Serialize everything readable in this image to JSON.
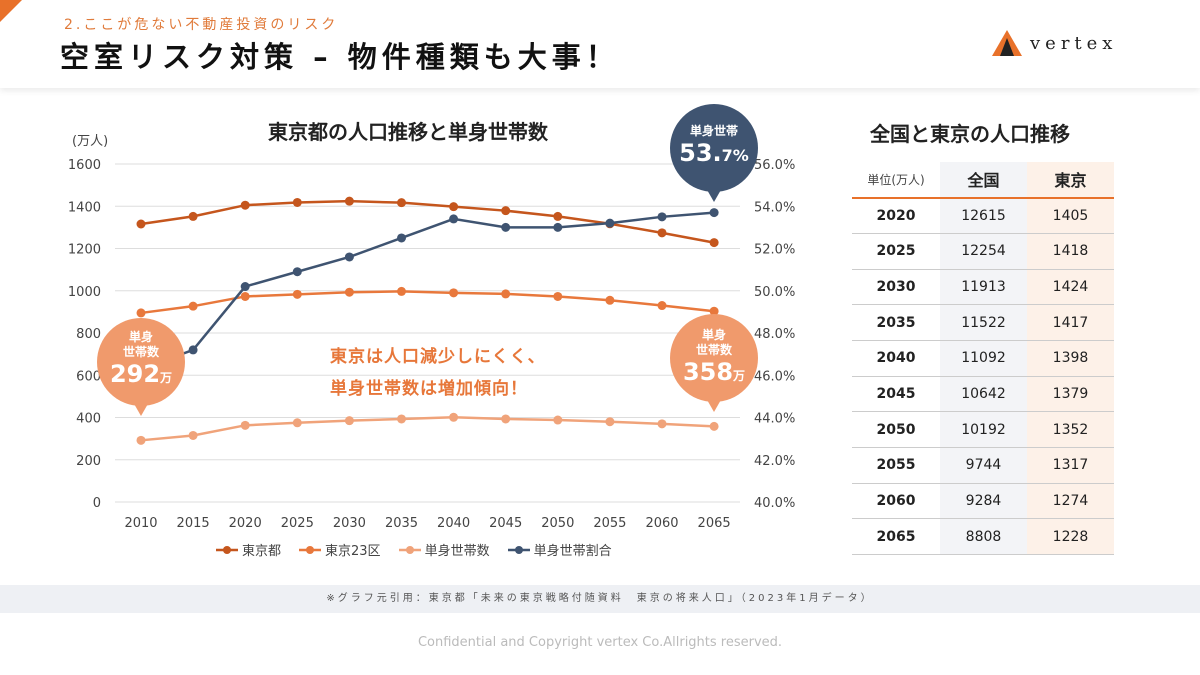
{
  "header": {
    "subtitle": "2.ここが危ない不動産投資のリスク",
    "title": "空室リスク対策 – 物件種類も大事！",
    "logo": "vertex"
  },
  "chart_data": {
    "type": "line",
    "title": "東京都の人口推移と単身世帯数",
    "ylabel": "(万人)",
    "ylim": [
      0,
      1600
    ],
    "y_ticks": [
      "0",
      "200",
      "400",
      "600",
      "800",
      "1000",
      "1200",
      "1400",
      "1600"
    ],
    "y2lim": [
      40,
      56
    ],
    "y2_ticks": [
      "40.0%",
      "42.0%",
      "44.0%",
      "46.0%",
      "48.0%",
      "50.0%",
      "52.0%",
      "54.0%",
      "56.0%"
    ],
    "categories": [
      "2010",
      "2015",
      "2020",
      "2025",
      "2030",
      "2035",
      "2040",
      "2045",
      "2050",
      "2055",
      "2060",
      "2065"
    ],
    "grid": true,
    "legend_position": "bottom",
    "series": [
      {
        "name": "東京都",
        "axis": "left",
        "color": "#c5561d",
        "values": [
          1316,
          1352,
          1405,
          1418,
          1424,
          1417,
          1398,
          1379,
          1352,
          1317,
          1274,
          1228
        ]
      },
      {
        "name": "東京23区",
        "axis": "left",
        "color": "#e8783c",
        "values": [
          895,
          927,
          973,
          983,
          993,
          997,
          990,
          985,
          973,
          955,
          930,
          903
        ]
      },
      {
        "name": "単身世帯数",
        "axis": "left",
        "color": "#f0a37a",
        "values": [
          292,
          315,
          363,
          375,
          385,
          393,
          401,
          393,
          388,
          380,
          370,
          358
        ]
      },
      {
        "name": "単身世帯割合",
        "axis": "right",
        "color": "#3f5471",
        "values": [
          46.3,
          47.2,
          50.2,
          50.9,
          51.6,
          52.5,
          53.4,
          53.0,
          53.0,
          53.2,
          53.5,
          53.7
        ]
      }
    ],
    "annotations": {
      "left_bubble": {
        "l1": "単身",
        "l2": "世帯数",
        "value": "292",
        "unit": "万"
      },
      "right_bubble": {
        "l1": "単身",
        "l2": "世帯数",
        "value": "358",
        "unit": "万"
      },
      "top_bubble": {
        "l1": "単身世帯",
        "value": "53.",
        "value2": "7%"
      },
      "note1": "東京は人口減少しにくく、",
      "note2": "単身世帯数は増加傾向！"
    }
  },
  "table": {
    "title": "全国と東京の人口推移",
    "headers": [
      "単位(万人)",
      "全国",
      "東京"
    ],
    "rows": [
      [
        "2020",
        "12615",
        "1405"
      ],
      [
        "2025",
        "12254",
        "1418"
      ],
      [
        "2030",
        "11913",
        "1424"
      ],
      [
        "2035",
        "11522",
        "1417"
      ],
      [
        "2040",
        "11092",
        "1398"
      ],
      [
        "2045",
        "10642",
        "1379"
      ],
      [
        "2050",
        "10192",
        "1352"
      ],
      [
        "2055",
        "9744",
        "1317"
      ],
      [
        "2060",
        "9284",
        "1274"
      ],
      [
        "2065",
        "8808",
        "1228"
      ]
    ]
  },
  "source": "※グラフ元引用：東京都「未来の東京戦略付随資料　東京の将来人口」（2023年1月データ）",
  "footer": "Confidential and Copyright vertex Co.Allrights reserved."
}
